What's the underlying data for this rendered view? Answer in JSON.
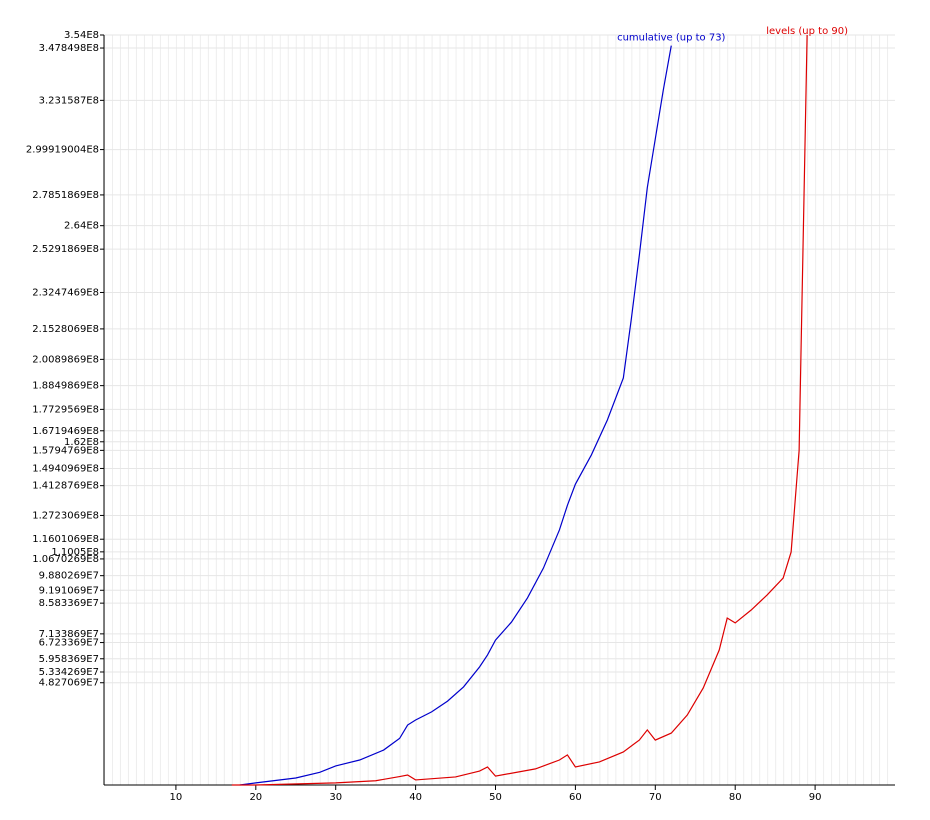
{
  "chart_data": {
    "type": "line",
    "x_series": true,
    "xlim": [
      1,
      100
    ],
    "xticks": [
      10,
      20,
      30,
      40,
      50,
      60,
      70,
      80,
      90
    ],
    "ylim": [
      0,
      354000000
    ],
    "yticks": [
      {
        "value": 354000000,
        "label": "3.54E8"
      },
      {
        "value": 347849800,
        "label": "3.478498E8"
      },
      {
        "value": 323158700,
        "label": "3.231587E8"
      },
      {
        "value": 299919004,
        "label": "2.99919004E8"
      },
      {
        "value": 278518690,
        "label": "2.7851869E8"
      },
      {
        "value": 264000000,
        "label": "2.64E8"
      },
      {
        "value": 252918690,
        "label": "2.5291869E8"
      },
      {
        "value": 232474690,
        "label": "2.3247469E8"
      },
      {
        "value": 215280690,
        "label": "2.1528069E8"
      },
      {
        "value": 200898690,
        "label": "2.0089869E8"
      },
      {
        "value": 188498690,
        "label": "1.8849869E8"
      },
      {
        "value": 177295690,
        "label": "1.7729569E8"
      },
      {
        "value": 167194690,
        "label": "1.6719469E8"
      },
      {
        "value": 162000000,
        "label": "1.62E8"
      },
      {
        "value": 157947690,
        "label": "1.5794769E8"
      },
      {
        "value": 149409690,
        "label": "1.4940969E8"
      },
      {
        "value": 141287690,
        "label": "1.4128769E8"
      },
      {
        "value": 127230690,
        "label": "1.2723069E8"
      },
      {
        "value": 116010690,
        "label": "1.1601069E8"
      },
      {
        "value": 110050000,
        "label": "1.1005E8"
      },
      {
        "value": 106702690,
        "label": "1.0670269E8"
      },
      {
        "value": 98802690,
        "label": "9.880269E7"
      },
      {
        "value": 91910690,
        "label": "9.191069E7"
      },
      {
        "value": 85833690,
        "label": "8.583369E7"
      },
      {
        "value": 71338690,
        "label": "7.133869E7"
      },
      {
        "value": 67233690,
        "label": "6.723369E7"
      },
      {
        "value": 59583690,
        "label": "5.958369E7"
      },
      {
        "value": 53342690,
        "label": "5.334269E7"
      },
      {
        "value": 48270690,
        "label": "4.827069E7"
      }
    ],
    "grid": true,
    "series": [
      {
        "name": "cumulative (up to 73)",
        "color": "#0000cc",
        "x": [
          18,
          20,
          25,
          28,
          30,
          33,
          36,
          38,
          39,
          40,
          42,
          44,
          46,
          48,
          49,
          50,
          52,
          54,
          56,
          58,
          59,
          60,
          62,
          64,
          66,
          67,
          68,
          69,
          70,
          71,
          72
        ],
        "values": [
          0,
          1000000,
          3300000,
          6000000,
          9000000,
          11800000,
          16500000,
          22000000,
          28300000,
          30700000,
          34500000,
          39600000,
          46300000,
          55700000,
          61400000,
          68400000,
          76900000,
          88300000,
          102400000,
          120400000,
          132000000,
          142000000,
          155800000,
          172300000,
          192100000,
          220000000,
          250000000,
          282000000,
          305000000,
          328000000,
          349000000
        ]
      },
      {
        "name": "levels (up to 90)",
        "color": "#dd0000",
        "x": [
          17,
          20,
          30,
          35,
          38,
          39,
          40,
          45,
          48,
          49,
          50,
          55,
          58,
          59,
          60,
          63,
          66,
          68,
          69,
          70,
          72,
          74,
          76,
          78,
          79,
          80,
          82,
          84,
          86,
          87,
          88,
          89
        ],
        "values": [
          0,
          0,
          1000000,
          2000000,
          4000000,
          4700000,
          2400000,
          3800000,
          6600000,
          8500000,
          4200000,
          7600000,
          11800000,
          14200000,
          8500000,
          10900000,
          15600000,
          21200000,
          26000000,
          21200000,
          24500000,
          33000000,
          45800000,
          63700000,
          78800000,
          76500000,
          82600000,
          89700000,
          97700000,
          110000000,
          158000000,
          354000000
        ]
      }
    ]
  }
}
